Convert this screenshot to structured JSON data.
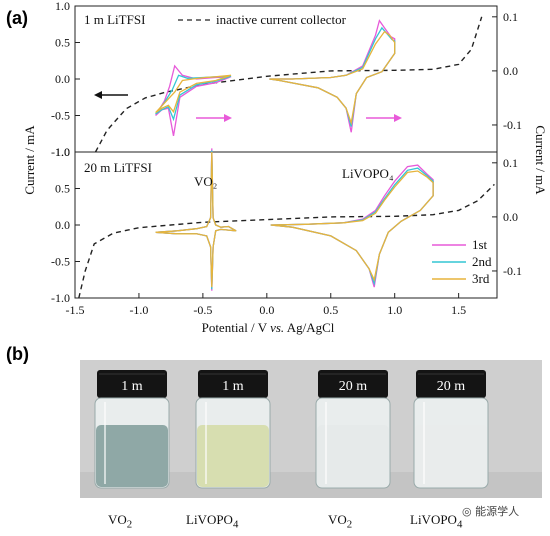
{
  "panel_a": {
    "letter": "(a)"
  },
  "panel_b": {
    "letter": "(b)"
  },
  "colors": {
    "cycle_1st": "#e75ad9",
    "cycle_2nd": "#34c6d4",
    "cycle_3rd": "#e7b43c",
    "collector": "#222222",
    "arrow_right": "#e85ad9",
    "arrow_left": "#111111"
  },
  "chart_data": [
    {
      "type": "line",
      "panel": "top",
      "title": "",
      "annotation": "1 m LiTFSI",
      "legend": {
        "entries": [
          "inactive current collector"
        ],
        "placement": "top"
      },
      "xlabel": "",
      "ylabel_left": "Current / mA",
      "ylabel_right": "Current / mA",
      "xlim": [
        -1.5,
        1.8
      ],
      "ylim_left": [
        -1.0,
        1.0
      ],
      "ylim_right": [
        -0.15,
        0.12
      ],
      "yticks_left": [
        "-1.0",
        "-0.5",
        "0.0",
        "0.5",
        "1.0"
      ],
      "yticks_right": [
        "-0.1",
        "0.0",
        "0.1"
      ],
      "series": [
        {
          "name": "inactive current collector",
          "axis": "right",
          "x": [
            -1.34,
            -1.25,
            -1.1,
            -0.95,
            -0.8,
            -0.5,
            0,
            0.5,
            1.0,
            1.3,
            1.5,
            1.6,
            1.68
          ],
          "y": [
            -0.15,
            -0.11,
            -0.07,
            -0.05,
            -0.04,
            -0.025,
            -0.01,
            0,
            0.001,
            0.003,
            0.012,
            0.04,
            0.1
          ]
        },
        {
          "name": "1st",
          "axis": "left",
          "x": [
            -0.87,
            -0.8,
            -0.76,
            -0.72,
            -0.66,
            -0.55,
            -0.4,
            -0.28,
            -0.4,
            -0.55,
            -0.68,
            -0.73,
            -0.77,
            -0.82,
            -0.87
          ],
          "y": [
            -0.5,
            -0.3,
            -0.1,
            0.18,
            0.05,
            0.0,
            0.02,
            0.03,
            -0.05,
            -0.1,
            -0.25,
            -0.78,
            -0.4,
            -0.42,
            -0.5
          ]
        },
        {
          "name": "2nd",
          "axis": "left",
          "x": [
            -0.87,
            -0.8,
            -0.74,
            -0.69,
            -0.62,
            -0.5,
            -0.4,
            -0.28,
            -0.4,
            -0.55,
            -0.68,
            -0.73,
            -0.77,
            -0.82,
            -0.87
          ],
          "y": [
            -0.48,
            -0.32,
            -0.15,
            0.05,
            0.01,
            0.02,
            0.03,
            0.04,
            -0.03,
            -0.08,
            -0.22,
            -0.55,
            -0.38,
            -0.42,
            -0.48
          ]
        },
        {
          "name": "3rd",
          "axis": "left",
          "x": [
            -0.87,
            -0.8,
            -0.72,
            -0.66,
            -0.58,
            -0.48,
            -0.4,
            -0.28,
            -0.4,
            -0.55,
            -0.68,
            -0.73,
            -0.77,
            -0.82,
            -0.87
          ],
          "y": [
            -0.46,
            -0.33,
            -0.18,
            -0.02,
            0.0,
            0.02,
            0.03,
            0.05,
            -0.02,
            -0.06,
            -0.18,
            -0.45,
            -0.36,
            -0.4,
            -0.46
          ]
        },
        {
          "name": "1st",
          "axis": "left",
          "x": [
            0.02,
            0.2,
            0.5,
            0.62,
            0.75,
            0.85,
            0.88,
            0.92,
            0.97,
            1.0,
            1.0,
            0.9,
            0.78,
            0.7,
            0.66,
            0.62,
            0.55,
            0.4,
            0.1,
            0.02
          ],
          "y": [
            0.0,
            0.0,
            0.02,
            0.05,
            0.18,
            0.6,
            0.8,
            0.7,
            0.58,
            0.55,
            0.35,
            0.1,
            0.02,
            -0.2,
            -0.73,
            -0.4,
            -0.25,
            -0.12,
            -0.02,
            0.0
          ]
        },
        {
          "name": "2nd",
          "axis": "left",
          "x": [
            0.02,
            0.2,
            0.5,
            0.62,
            0.75,
            0.85,
            0.9,
            0.94,
            0.98,
            1.0,
            1.0,
            0.9,
            0.78,
            0.7,
            0.66,
            0.62,
            0.55,
            0.4,
            0.1,
            0.02
          ],
          "y": [
            0.0,
            0.0,
            0.02,
            0.05,
            0.16,
            0.55,
            0.7,
            0.62,
            0.54,
            0.52,
            0.35,
            0.1,
            0.02,
            -0.2,
            -0.65,
            -0.4,
            -0.25,
            -0.12,
            -0.02,
            0.0
          ]
        },
        {
          "name": "3rd",
          "axis": "left",
          "x": [
            0.02,
            0.2,
            0.5,
            0.62,
            0.75,
            0.85,
            0.92,
            0.96,
            1.0,
            1.0,
            0.9,
            0.78,
            0.7,
            0.66,
            0.62,
            0.55,
            0.4,
            0.1,
            0.02
          ],
          "y": [
            0.0,
            0.0,
            0.02,
            0.05,
            0.14,
            0.48,
            0.65,
            0.6,
            0.5,
            0.35,
            0.1,
            0.02,
            -0.2,
            -0.6,
            -0.4,
            -0.25,
            -0.12,
            -0.02,
            0.0
          ]
        }
      ]
    },
    {
      "type": "line",
      "panel": "bottom",
      "title": "",
      "annotations": [
        "20 m LiTFSI",
        "VO₂",
        "LiVOPO₄"
      ],
      "legend": {
        "entries": [
          "1st",
          "2nd",
          "3rd"
        ],
        "placement": "bottom-right"
      },
      "xlabel": "Potential / V vs. Ag/AgCl",
      "xticks": [
        "-1.5",
        "-1.0",
        "-0.5",
        "0.0",
        "0.5",
        "1.0",
        "1.5"
      ],
      "xlim": [
        -1.5,
        1.8
      ],
      "ylim_left": [
        -1.0,
        1.0
      ],
      "ylim_right": [
        -0.15,
        0.12
      ],
      "yticks_left": [
        "-1.0",
        "-0.5",
        "0.0",
        "0.5",
        "1.0"
      ],
      "yticks_right": [
        "-0.1",
        "0.0",
        "0.1"
      ],
      "series": [
        {
          "name": "inactive current collector",
          "axis": "right",
          "x": [
            -1.47,
            -1.42,
            -1.35,
            -1.2,
            -1.0,
            -0.5,
            0,
            0.5,
            1.0,
            1.3,
            1.5,
            1.65,
            1.78
          ],
          "y": [
            -0.15,
            -0.1,
            -0.05,
            -0.03,
            -0.02,
            -0.01,
            -0.005,
            0,
            0.001,
            0.004,
            0.012,
            0.03,
            0.06
          ]
        },
        {
          "name": "1st",
          "axis": "left",
          "x": [
            -0.87,
            -0.7,
            -0.55,
            -0.47,
            -0.44,
            -0.43,
            -0.42,
            -0.4,
            -0.36,
            -0.3,
            -0.24,
            -0.3,
            -0.36,
            -0.4,
            -0.42,
            -0.43,
            -0.44,
            -0.47,
            -0.55,
            -0.7,
            -0.87
          ],
          "y": [
            -0.1,
            -0.08,
            -0.05,
            -0.02,
            0.1,
            1.05,
            0.1,
            0.0,
            -0.03,
            -0.02,
            -0.08,
            -0.07,
            -0.06,
            -0.08,
            -0.3,
            -0.9,
            -0.3,
            -0.15,
            -0.12,
            -0.12,
            -0.1
          ]
        },
        {
          "name": "2nd",
          "axis": "left",
          "x": [
            -0.87,
            -0.7,
            -0.55,
            -0.47,
            -0.44,
            -0.43,
            -0.42,
            -0.4,
            -0.36,
            -0.3,
            -0.24,
            -0.3,
            -0.36,
            -0.4,
            -0.42,
            -0.43,
            -0.44,
            -0.47,
            -0.55,
            -0.7,
            -0.87
          ],
          "y": [
            -0.1,
            -0.08,
            -0.05,
            -0.02,
            0.1,
            1.02,
            0.1,
            0.0,
            -0.03,
            -0.02,
            -0.08,
            -0.07,
            -0.06,
            -0.08,
            -0.3,
            -0.88,
            -0.3,
            -0.15,
            -0.12,
            -0.12,
            -0.1
          ]
        },
        {
          "name": "3rd",
          "axis": "left",
          "x": [
            -0.87,
            -0.7,
            -0.55,
            -0.47,
            -0.44,
            -0.43,
            -0.42,
            -0.4,
            -0.36,
            -0.3,
            -0.24,
            -0.3,
            -0.36,
            -0.4,
            -0.42,
            -0.43,
            -0.44,
            -0.47,
            -0.55,
            -0.7,
            -0.87
          ],
          "y": [
            -0.1,
            -0.08,
            -0.05,
            -0.02,
            0.1,
            1.0,
            0.1,
            0.0,
            -0.03,
            -0.02,
            -0.08,
            -0.07,
            -0.06,
            -0.08,
            -0.3,
            -0.85,
            -0.3,
            -0.15,
            -0.12,
            -0.12,
            -0.1
          ]
        },
        {
          "name": "1st",
          "axis": "left",
          "x": [
            0.03,
            0.3,
            0.6,
            0.75,
            0.85,
            0.92,
            1.0,
            1.1,
            1.18,
            1.25,
            1.3,
            1.3,
            1.2,
            1.05,
            0.95,
            0.88,
            0.84,
            0.8,
            0.7,
            0.5,
            0.2,
            0.03
          ],
          "y": [
            0.0,
            0.01,
            0.03,
            0.08,
            0.2,
            0.4,
            0.6,
            0.8,
            0.82,
            0.7,
            0.62,
            0.4,
            0.2,
            0.05,
            -0.1,
            -0.4,
            -0.85,
            -0.6,
            -0.35,
            -0.15,
            -0.03,
            0.0
          ]
        },
        {
          "name": "2nd",
          "axis": "left",
          "x": [
            0.03,
            0.3,
            0.6,
            0.75,
            0.85,
            0.92,
            1.0,
            1.1,
            1.18,
            1.25,
            1.3,
            1.3,
            1.2,
            1.05,
            0.95,
            0.88,
            0.84,
            0.8,
            0.7,
            0.5,
            0.2,
            0.03
          ],
          "y": [
            0.0,
            0.01,
            0.03,
            0.07,
            0.18,
            0.36,
            0.55,
            0.75,
            0.78,
            0.68,
            0.6,
            0.4,
            0.2,
            0.05,
            -0.1,
            -0.4,
            -0.8,
            -0.6,
            -0.35,
            -0.15,
            -0.03,
            0.0
          ]
        },
        {
          "name": "3rd",
          "axis": "left",
          "x": [
            0.03,
            0.3,
            0.6,
            0.75,
            0.85,
            0.92,
            1.0,
            1.1,
            1.18,
            1.25,
            1.3,
            1.3,
            1.2,
            1.05,
            0.95,
            0.88,
            0.84,
            0.8,
            0.7,
            0.5,
            0.2,
            0.03
          ],
          "y": [
            0.0,
            0.01,
            0.03,
            0.06,
            0.16,
            0.34,
            0.52,
            0.72,
            0.74,
            0.66,
            0.58,
            0.4,
            0.2,
            0.05,
            -0.1,
            -0.4,
            -0.75,
            -0.6,
            -0.35,
            -0.15,
            -0.03,
            0.0
          ]
        }
      ]
    }
  ],
  "photo": {
    "vials": [
      {
        "cap": "1 m",
        "label_base": "VO",
        "label_sub": "2",
        "liquid": "#8fa8a6"
      },
      {
        "cap": "1 m",
        "label_base": "LiVOPO",
        "label_sub": "4",
        "liquid": "#d7deb0"
      },
      {
        "cap": "20 m",
        "label_base": "VO",
        "label_sub": "2",
        "liquid": "#e6eaea"
      },
      {
        "cap": "20 m",
        "label_base": "LiVOPO",
        "label_sub": "4",
        "liquid": "#e9ecec"
      }
    ]
  },
  "watermark": "能源学人"
}
